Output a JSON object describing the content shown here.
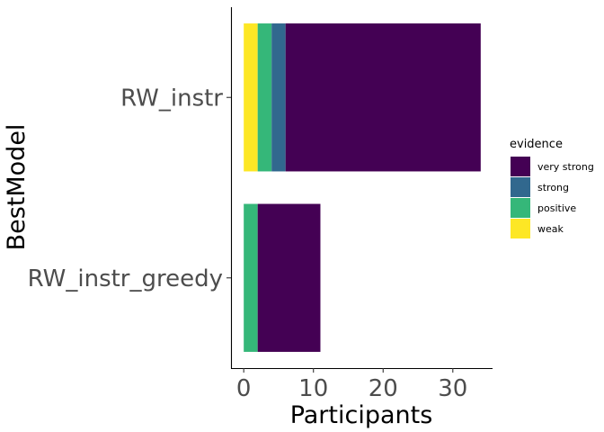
{
  "chart_data": {
    "type": "bar",
    "orientation": "horizontal",
    "stacked": true,
    "categories": [
      "RW_instr",
      "RW_instr_greedy"
    ],
    "series": [
      {
        "name": "weak",
        "color": "#FDE725",
        "values": [
          2,
          0
        ]
      },
      {
        "name": "positive",
        "color": "#35B779",
        "values": [
          2,
          2
        ]
      },
      {
        "name": "strong",
        "color": "#31688E",
        "values": [
          2,
          0
        ]
      },
      {
        "name": "very strong",
        "color": "#440154",
        "values": [
          28,
          9
        ]
      }
    ],
    "xlabel": "Participants",
    "ylabel": "BestModel",
    "xlim": [
      -1.7,
      35.7
    ],
    "xticks": [
      0,
      10,
      20,
      30
    ],
    "grid": false,
    "legend": {
      "title": "evidence",
      "placement": "right",
      "entries": [
        "very strong",
        "strong",
        "positive",
        "weak"
      ]
    }
  }
}
